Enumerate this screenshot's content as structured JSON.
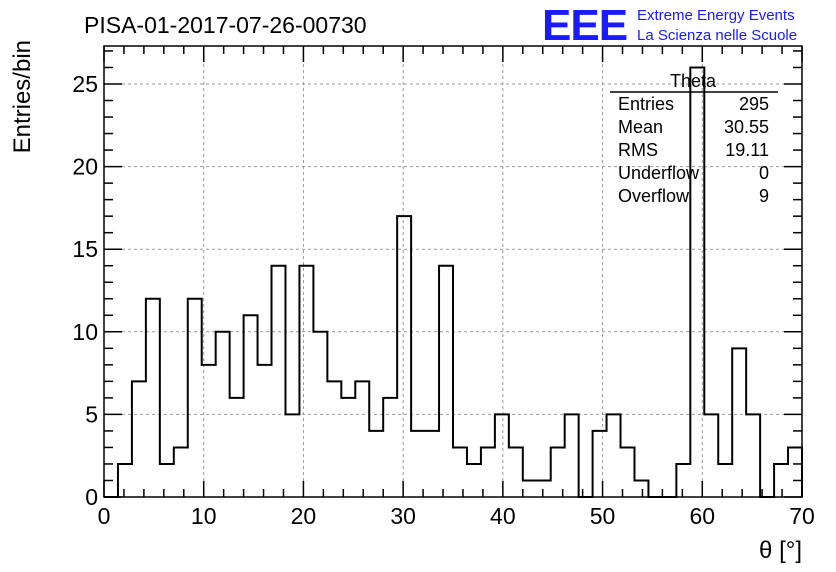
{
  "chart_data": {
    "type": "histogram",
    "title": "PISA-01-2017-07-26-00730",
    "xlabel": "θ [°]",
    "ylabel": "Entries/bin",
    "xlim": [
      0,
      70
    ],
    "ylim": [
      0,
      27.3
    ],
    "x_ticks": [
      0,
      10,
      20,
      30,
      40,
      50,
      60,
      70
    ],
    "y_ticks": [
      0,
      5,
      10,
      15,
      20,
      25
    ],
    "grid": true,
    "bin_width": 1.4,
    "bin_edges_start": 0,
    "values": [
      0,
      2,
      7,
      12,
      2,
      3,
      12,
      8,
      10,
      6,
      11,
      8,
      14,
      5,
      14,
      10,
      7,
      6,
      7,
      4,
      6,
      17,
      4,
      4,
      14,
      3,
      2,
      3,
      5,
      3,
      1,
      1,
      3,
      5,
      0,
      4,
      5,
      3,
      1,
      0,
      0,
      2,
      26,
      5,
      2,
      9,
      5,
      0,
      2,
      3
    ],
    "stats_box": {
      "title": "Theta",
      "rows": [
        {
          "label": "Entries",
          "value": "295"
        },
        {
          "label": "Mean",
          "value": "30.55"
        },
        {
          "label": "RMS",
          "value": "19.11"
        },
        {
          "label": "Underflow",
          "value": "0"
        },
        {
          "label": "Overflow",
          "value": "9"
        }
      ]
    }
  },
  "logo": {
    "text": "EEE",
    "line1": "Extreme Energy Events",
    "line2": "La Scienza nelle Scuole",
    "color": "#1a1aff"
  }
}
